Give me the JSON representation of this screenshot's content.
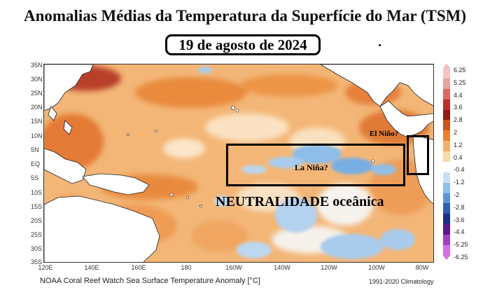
{
  "title": "Anomalias Médias da Temperatura da Superfície do Mar (TSM)",
  "date": "19 de agosto de 2024",
  "map": {
    "lat_labels": [
      "35N",
      "30N",
      "25N",
      "20N",
      "15N",
      "10N",
      "5N",
      "EQ",
      "5S",
      "10S",
      "15S",
      "20S",
      "25S",
      "30S",
      "35S"
    ],
    "lon_labels": [
      "120E",
      "140E",
      "160E",
      "180",
      "160W",
      "140W",
      "120W",
      "100W",
      "80W"
    ],
    "annotations": {
      "la_nina": "La Niña?",
      "el_nino": "El Niño?",
      "neutral": "NEUTRALIDADE oceânica"
    }
  },
  "colorbar": {
    "labels": [
      "6.25",
      "5.25",
      "4.4",
      "3.6",
      "2.8",
      "2",
      "1.2",
      "0.4",
      "-0.4",
      "-1.2",
      "-2",
      "-2.8",
      "-3.6",
      "-4.4",
      "-5.25",
      "-6.25"
    ],
    "colors": [
      "#f4c4c4",
      "#e8a3a0",
      "#d96a62",
      "#b8312a",
      "#8e1c12",
      "#c9531d",
      "#e9822e",
      "#f4b06a",
      "#f8d9a8",
      "#ffffff",
      "#c8e0f4",
      "#8fc0ea",
      "#5b93d6",
      "#2f5fb0",
      "#1a2f80",
      "#5c1a86",
      "#a43fc0",
      "#d76fe6"
    ]
  },
  "footer": {
    "source": "NOAA Coral Reef Watch Sea Surface Temperature Anomaly [°C]",
    "climatology": "1991-2020 Climatology"
  }
}
